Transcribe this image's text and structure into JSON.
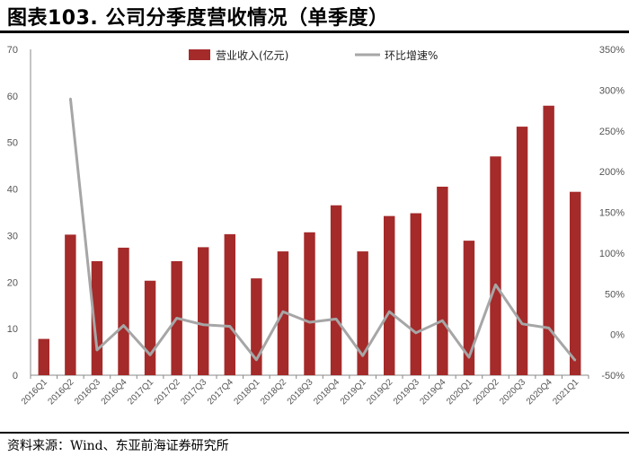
{
  "title": "图表103. 公司分季度营收情况（单季度）",
  "source": "资料来源：Wind、东亚前海证券研究所",
  "chart_data": {
    "type": "bar",
    "categories": [
      "2016Q1",
      "2016Q2",
      "2016Q3",
      "2016Q4",
      "2017Q1",
      "2017Q2",
      "2017Q3",
      "2017Q4",
      "2018Q1",
      "2018Q2",
      "2018Q3",
      "2018Q4",
      "2019Q1",
      "2019Q2",
      "2019Q3",
      "2019Q4",
      "2020Q1",
      "2020Q2",
      "2020Q3",
      "2020Q4",
      "2021Q1"
    ],
    "series": [
      {
        "name": "营业收入(亿元)",
        "type": "bar",
        "axis": "left",
        "color": "#A52A2A",
        "values": [
          7.8,
          30.2,
          24.5,
          27.4,
          20.3,
          24.5,
          27.5,
          30.3,
          20.8,
          26.6,
          30.7,
          36.5,
          26.6,
          34.2,
          34.8,
          40.5,
          28.9,
          47.0,
          53.4,
          57.9,
          39.4
        ]
      },
      {
        "name": "环比增速%",
        "type": "line",
        "axis": "right",
        "color": "#A6A6A6",
        "values": [
          null,
          290,
          -19,
          11,
          -25,
          20,
          12,
          10,
          -31,
          28,
          15,
          19,
          -26,
          28,
          2,
          17,
          -28,
          61,
          13,
          8,
          -32
        ]
      }
    ],
    "yleft": {
      "min": 0,
      "max": 70,
      "step": 10,
      "ticks": [
        "0",
        "10",
        "20",
        "30",
        "40",
        "50",
        "60",
        "70"
      ]
    },
    "yright": {
      "min": -50,
      "max": 350,
      "step": 50,
      "ticks": [
        "-50%",
        "0%",
        "50%",
        "100%",
        "150%",
        "200%",
        "250%",
        "300%",
        "350%"
      ]
    },
    "grid": false,
    "legend": "top-center"
  }
}
